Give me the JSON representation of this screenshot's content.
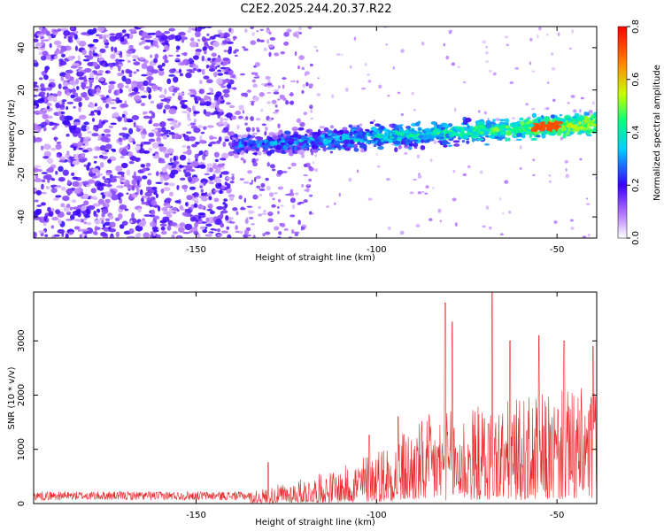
{
  "figure_title": "C2E2.2025.244.20.37.R22",
  "colors": {
    "line": "#e8282a",
    "frame": "#000000",
    "spectrogram_low": "#8a2be2"
  },
  "chart_data": [
    {
      "type": "heatmap",
      "name": "spectrogram",
      "xlabel": "Height of straight line (km)",
      "ylabel": "Frequency (Hz)",
      "xlim": [
        -195,
        -39
      ],
      "ylim": [
        -50,
        50
      ],
      "x_ticks": [
        -150,
        -100,
        -50
      ],
      "y_ticks": [
        -40,
        -20,
        0,
        20,
        40
      ],
      "description_signal": {
        "band_center_hz_start": -6,
        "band_center_hz_end": 4,
        "band_start_km": -140,
        "band_end_km": -39,
        "noise_dense_until_km": -140,
        "noise_sparse_until_km": -118,
        "peak_amplitude_near_km": -53
      },
      "colorbar": {
        "label": "Normalized spectral amplitude",
        "range": [
          0.0,
          0.8
        ],
        "ticks": [
          "0.0",
          "0.2",
          "0.4",
          "0.6",
          "0.8"
        ]
      }
    },
    {
      "type": "line",
      "name": "snr",
      "xlabel": "Height of straight line (km)",
      "ylabel": "SNR (10 * v/v)",
      "xlim": [
        -195,
        -39
      ],
      "ylim": [
        0,
        3900
      ],
      "x_ticks": [
        -150,
        -100,
        -50
      ],
      "y_ticks": [
        0,
        1000,
        2000,
        3000
      ],
      "notable_peaks": [
        {
          "x": -130,
          "y": 760
        },
        {
          "x": -102,
          "y": 1260
        },
        {
          "x": -94,
          "y": 1600
        },
        {
          "x": -81,
          "y": 3700
        },
        {
          "x": -79,
          "y": 3350
        },
        {
          "x": -68,
          "y": 3900
        },
        {
          "x": -63,
          "y": 3000
        },
        {
          "x": -55,
          "y": 3100
        },
        {
          "x": -48,
          "y": 3000
        },
        {
          "x": -40,
          "y": 2900
        }
      ],
      "baseline_level": 150
    }
  ]
}
